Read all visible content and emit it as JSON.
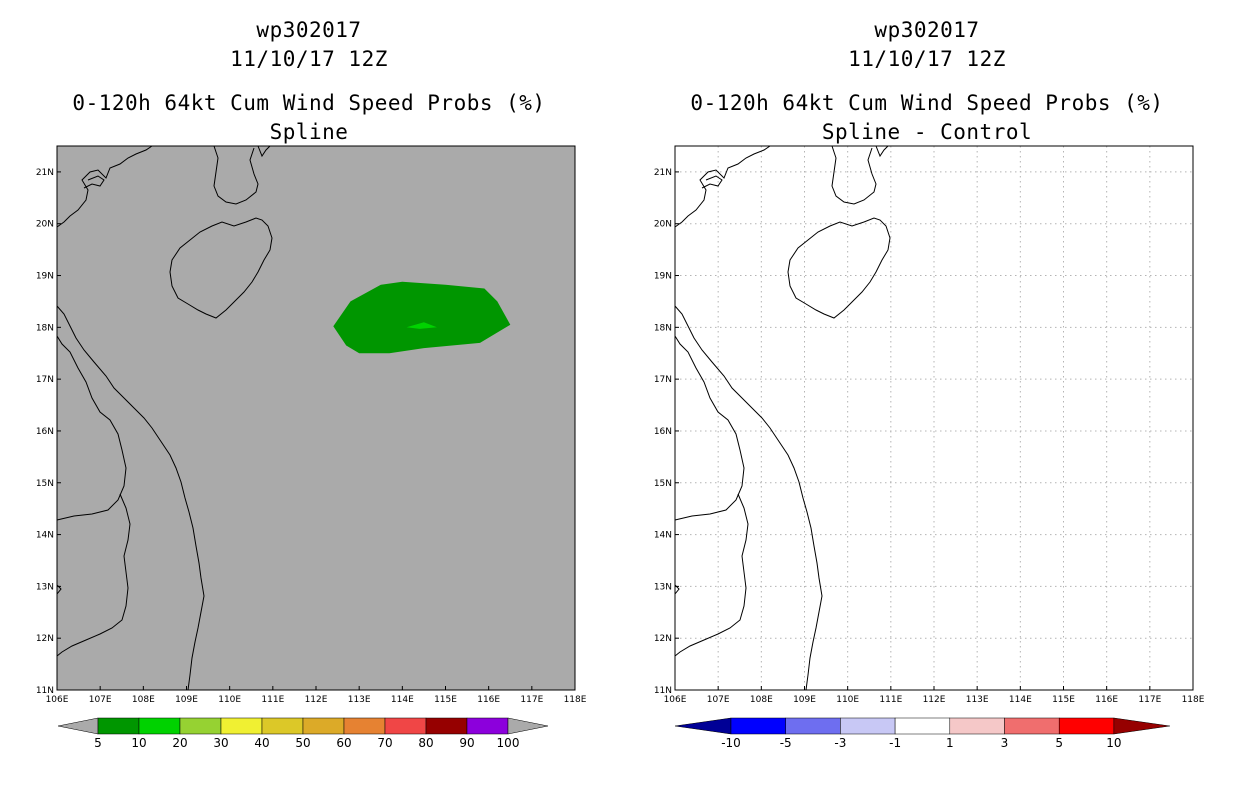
{
  "panels": [
    {
      "id": "left",
      "title_line1": "wp302017",
      "title_line2": "11/10/17 12Z",
      "title_line3": "0-120h 64kt Cum Wind Speed Probs (%)",
      "title_line4": "Spline",
      "background_color": "#aaaaaa",
      "gridlines": false,
      "colorbar": {
        "labels": [
          "5",
          "10",
          "20",
          "30",
          "40",
          "50",
          "60",
          "70",
          "80",
          "90",
          "100"
        ],
        "colors": [
          "#009600",
          "#00d200",
          "#96d232",
          "#f0f032",
          "#dcc828",
          "#dcaa28",
          "#e68232",
          "#f04646",
          "#960000",
          "#8c00dc"
        ],
        "end_color": "#aaaaaa"
      }
    },
    {
      "id": "right",
      "title_line1": "wp302017",
      "title_line2": "11/10/17 12Z",
      "title_line3": "0-120h 64kt Cum Wind Speed Probs (%)",
      "title_line4": "Spline - Control",
      "background_color": "#ffffff",
      "gridlines": true,
      "colorbar": {
        "labels": [
          "-10",
          "-5",
          "-3",
          "-1",
          "1",
          "3",
          "5",
          "10"
        ],
        "colors": [
          "#0000ff",
          "#6e6ef0",
          "#c8c8f5",
          "#ffffff",
          "#f5c8c8",
          "#f06e6e",
          "#ff0000"
        ],
        "left_end_color": "#000096",
        "right_end_color": "#960000"
      }
    }
  ],
  "axes": {
    "lon_labels": [
      "106E",
      "107E",
      "108E",
      "109E",
      "110E",
      "111E",
      "112E",
      "113E",
      "114E",
      "115E",
      "116E",
      "117E",
      "118E"
    ],
    "lat_labels": [
      "11N",
      "12N",
      "13N",
      "14N",
      "15N",
      "16N",
      "17N",
      "18N",
      "19N",
      "20N",
      "21N"
    ],
    "lon_range": [
      106,
      118
    ],
    "lat_range": [
      11,
      21.5
    ]
  },
  "probability_field": {
    "outer_color": "#009600",
    "inner_color": "#00d200",
    "outer_polygon_lonlat": [
      [
        112.4,
        18.02
      ],
      [
        112.8,
        18.5
      ],
      [
        113.5,
        18.82
      ],
      [
        114.0,
        18.88
      ],
      [
        115.0,
        18.82
      ],
      [
        115.9,
        18.75
      ],
      [
        116.2,
        18.5
      ],
      [
        116.5,
        18.05
      ],
      [
        115.8,
        17.7
      ],
      [
        114.5,
        17.6
      ],
      [
        113.7,
        17.5
      ],
      [
        113.0,
        17.5
      ],
      [
        112.7,
        17.65
      ]
    ],
    "inner_polygon_lonlat": [
      [
        114.1,
        18.0
      ],
      [
        114.5,
        18.1
      ],
      [
        114.8,
        18.0
      ],
      [
        114.4,
        17.97
      ]
    ]
  }
}
